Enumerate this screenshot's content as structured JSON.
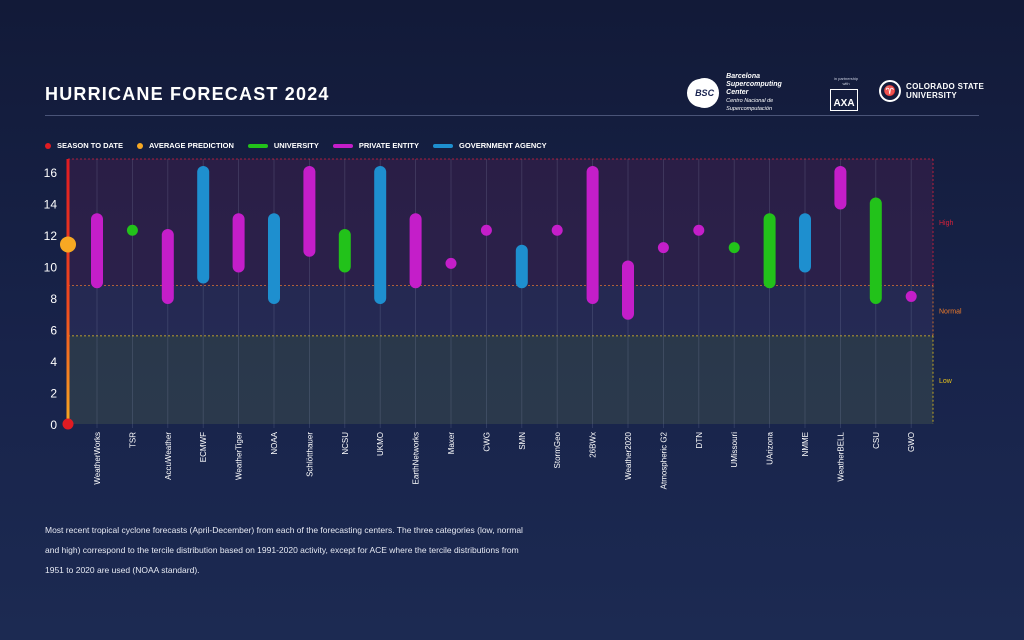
{
  "header": {
    "title": "HURRICANE FORECAST 2024",
    "bsc_logo": {
      "abbr": "BSC",
      "line1": "Barcelona",
      "line2": "Supercomputing",
      "line3": "Center",
      "line4": "Centro Nacional de Supercomputación"
    },
    "axa_logo": {
      "tag": "in partnership with",
      "name": "AXA"
    },
    "csu_logo": {
      "line1": "COLORADO STATE",
      "line2": "UNIVERSITY"
    }
  },
  "legend": [
    {
      "label": "SEASON TO DATE",
      "kind": "dot",
      "color": "#e01b22"
    },
    {
      "label": "AVERAGE PREDICTION",
      "kind": "dot",
      "color": "#f7a823"
    },
    {
      "label": "UNIVERSITY",
      "kind": "line",
      "color": "#22c21a"
    },
    {
      "label": "PRIVATE ENTITY",
      "kind": "line",
      "color": "#c41ec9"
    },
    {
      "label": "GOVERNMENT AGENCY",
      "kind": "line",
      "color": "#1e8fcf"
    }
  ],
  "caption": "Most recent tropical cyclone forecasts (April-December) from each of the forecasting centers. The three categories (low, normal and high) correspond to the tercile distribution based on 1991-2020 activity, except for ACE where the tercile distributions from 1951 to 2020 are used (NOAA standard).",
  "colors": {
    "university": "#22c21a",
    "private": "#c41ec9",
    "government": "#1e8fcf",
    "season": "#e01b22",
    "average": "#f7a823"
  },
  "chart_data": {
    "type": "range-bar",
    "ylim": [
      0,
      16
    ],
    "yticks": [
      0,
      2,
      4,
      6,
      8,
      10,
      12,
      14,
      16
    ],
    "terciles": [
      {
        "label": "Low",
        "from": 0,
        "to": 5.6,
        "color": "#e6c21b"
      },
      {
        "label": "Normal",
        "from": 5.6,
        "to": 8.8,
        "color": "#f07c2a"
      },
      {
        "label": "High",
        "from": 8.8,
        "to": 16.8,
        "color": "#d8213a"
      }
    ],
    "season_to_date": 0,
    "average_prediction": 11.4,
    "forecasts": [
      {
        "name": "WeatherWorks",
        "type": "private",
        "min": 9,
        "max": 13
      },
      {
        "name": "TSR",
        "type": "university",
        "min": 12.3,
        "max": 12.3
      },
      {
        "name": "AccuWeather",
        "type": "private",
        "min": 8,
        "max": 12
      },
      {
        "name": "ECMWF",
        "type": "government",
        "min": 9.3,
        "max": 16
      },
      {
        "name": "WeatherTiger",
        "type": "private",
        "min": 10,
        "max": 13
      },
      {
        "name": "NOAA",
        "type": "government",
        "min": 8,
        "max": 13
      },
      {
        "name": "Schlötthauer",
        "type": "private",
        "min": 11,
        "max": 16
      },
      {
        "name": "NCSU",
        "type": "university",
        "min": 10,
        "max": 12
      },
      {
        "name": "UKMO",
        "type": "government",
        "min": 8,
        "max": 16
      },
      {
        "name": "EarthNetworks",
        "type": "private",
        "min": 9,
        "max": 13
      },
      {
        "name": "Maxer",
        "type": "private",
        "min": 10.2,
        "max": 10.2
      },
      {
        "name": "CWG",
        "type": "private",
        "min": 12.3,
        "max": 12.3
      },
      {
        "name": "SMN",
        "type": "government",
        "min": 9,
        "max": 11
      },
      {
        "name": "StormGeo",
        "type": "private",
        "min": 12.3,
        "max": 12.3
      },
      {
        "name": "26BWx",
        "type": "private",
        "min": 8,
        "max": 16
      },
      {
        "name": "Weather2020",
        "type": "private",
        "min": 7,
        "max": 10
      },
      {
        "name": "Atmospheric G2",
        "type": "private",
        "min": 11.2,
        "max": 11.2
      },
      {
        "name": "DTN",
        "type": "private",
        "min": 12.3,
        "max": 12.3
      },
      {
        "name": "UMissouri",
        "type": "university",
        "min": 11.2,
        "max": 11.2
      },
      {
        "name": "UArizona",
        "type": "university",
        "min": 9,
        "max": 13
      },
      {
        "name": "NMME",
        "type": "government",
        "min": 10,
        "max": 13
      },
      {
        "name": "WeatherBELL",
        "type": "private",
        "min": 14,
        "max": 16
      },
      {
        "name": "CSU",
        "type": "university",
        "min": 8,
        "max": 14
      },
      {
        "name": "GWO",
        "type": "private",
        "min": 8.1,
        "max": 8.1
      }
    ]
  }
}
